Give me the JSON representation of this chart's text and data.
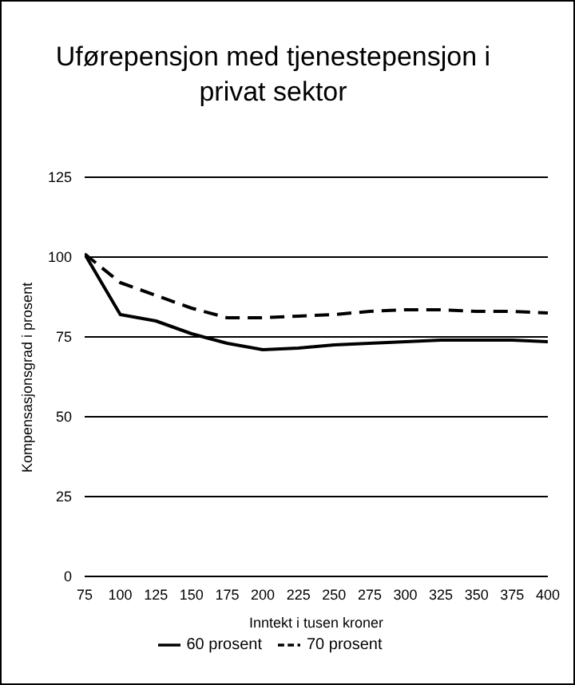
{
  "chart_data": {
    "type": "line",
    "title": "Uførepensjon med tjenestepensjon i privat sektor",
    "xlabel": "Inntekt i tusen kroner",
    "ylabel": "Kompensasjonsgrad i prosent",
    "x": [
      75,
      100,
      125,
      150,
      175,
      200,
      225,
      250,
      275,
      300,
      325,
      350,
      375,
      400
    ],
    "series": [
      {
        "name": "60 prosent",
        "color": "#000000",
        "line_style": "solid",
        "values": [
          101,
          82,
          80,
          76,
          73,
          71,
          71.5,
          72.5,
          73,
          73.5,
          74,
          74,
          74,
          73.5
        ]
      },
      {
        "name": "70 prosent",
        "color": "#000000",
        "line_style": "dashed",
        "values": [
          101,
          92,
          88,
          84,
          81,
          81,
          81.5,
          82,
          83,
          83.5,
          83.5,
          83,
          83,
          82.5
        ]
      }
    ],
    "xlim": [
      75,
      400
    ],
    "xticks": [
      75,
      100,
      125,
      150,
      175,
      200,
      225,
      250,
      275,
      300,
      325,
      350,
      375,
      400
    ],
    "ylim": [
      0,
      125
    ],
    "yticks": [
      0,
      25,
      50,
      75,
      100,
      125
    ],
    "grid": "y",
    "legend": "bottom",
    "marker": "none"
  }
}
